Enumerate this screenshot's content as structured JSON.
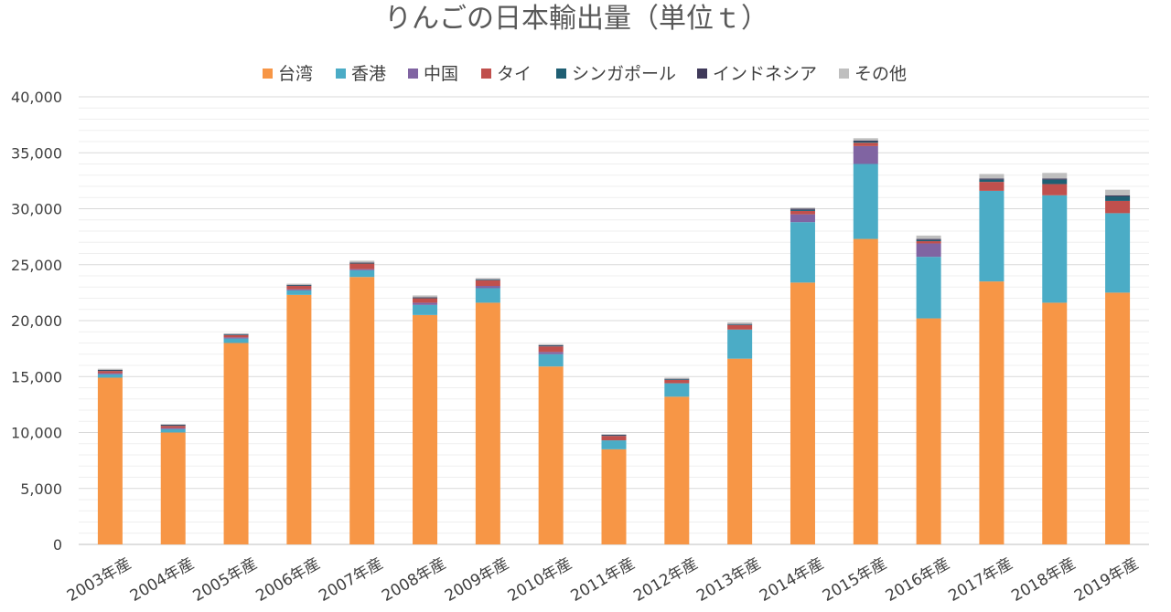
{
  "chart_data": {
    "type": "bar",
    "stacked": true,
    "title": "りんごの日本輸出量（単位ｔ）",
    "xlabel": "",
    "ylabel": "",
    "ylim": [
      0,
      40000
    ],
    "yticks": [
      0,
      5000,
      10000,
      15000,
      20000,
      25000,
      30000,
      35000,
      40000
    ],
    "ytick_labels": [
      "0",
      "5,000",
      "10,000",
      "15,000",
      "20,000",
      "25,000",
      "30,000",
      "35,000",
      "40,000"
    ],
    "grid": true,
    "legend_position": "top",
    "categories": [
      "2003年産",
      "2004年産",
      "2005年産",
      "2006年産",
      "2007年産",
      "2008年産",
      "2009年産",
      "2010年産",
      "2011年産",
      "2012年産",
      "2013年産",
      "2014年産",
      "2015年産",
      "2016年産",
      "2017年産",
      "2018年産",
      "2019年産"
    ],
    "series": [
      {
        "name": "台湾",
        "color": "#F79646",
        "values": [
          14900,
          10000,
          18000,
          22300,
          23900,
          20500,
          21600,
          15900,
          8500,
          13200,
          16600,
          23400,
          27300,
          20200,
          23500,
          21600,
          22500
        ]
      },
      {
        "name": "香港",
        "color": "#4BACC6",
        "values": [
          300,
          300,
          400,
          400,
          600,
          900,
          1300,
          1100,
          800,
          1200,
          2600,
          5400,
          6700,
          5500,
          8100,
          9600,
          7100
        ]
      },
      {
        "name": "中国",
        "color": "#8064A2",
        "values": [
          100,
          100,
          100,
          100,
          100,
          200,
          200,
          200,
          0,
          0,
          0,
          700,
          1600,
          1200,
          0,
          0,
          0
        ]
      },
      {
        "name": "タイ",
        "color": "#C0504D",
        "values": [
          200,
          200,
          200,
          300,
          500,
          400,
          500,
          500,
          400,
          300,
          400,
          300,
          300,
          200,
          800,
          1000,
          1100
        ]
      },
      {
        "name": "シンガポール",
        "color": "#1F5F73",
        "values": [
          50,
          50,
          50,
          50,
          50,
          50,
          50,
          50,
          50,
          50,
          50,
          100,
          100,
          100,
          200,
          400,
          400
        ]
      },
      {
        "name": "インドネシア",
        "color": "#403A5A",
        "values": [
          50,
          50,
          50,
          50,
          50,
          50,
          50,
          50,
          50,
          50,
          50,
          100,
          100,
          100,
          100,
          100,
          100
        ]
      },
      {
        "name": "その他",
        "color": "#BFBFBF",
        "values": [
          100,
          50,
          50,
          100,
          150,
          150,
          100,
          100,
          50,
          100,
          150,
          100,
          200,
          300,
          400,
          500,
          500
        ]
      }
    ]
  }
}
